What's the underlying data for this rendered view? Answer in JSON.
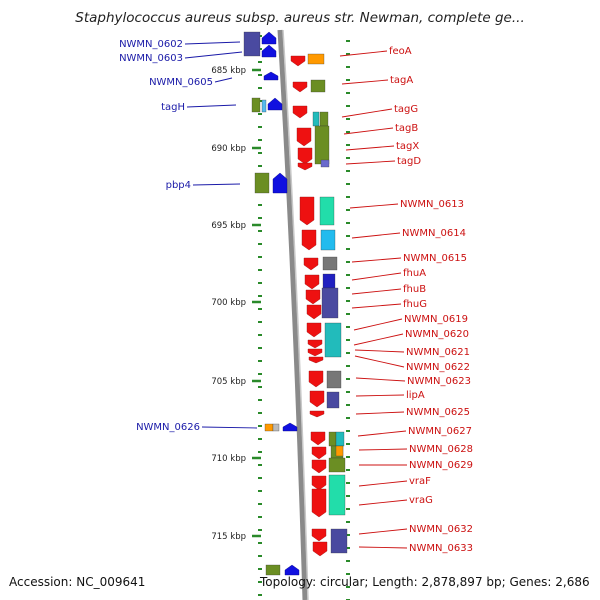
{
  "header": {
    "title": "Staphylococcus aureus subsp. aureus str. Newman, complete ge..."
  },
  "footer": {
    "accession": "Accession: NC_009641",
    "topology": "Topology: circular; Length: 2,878,897 bp; Genes: 2,686"
  },
  "colors": {
    "left_strand": "#1010e0",
    "right_strand": "#ee1111",
    "left_label": "#1a1aa8",
    "right_label": "#cc1111",
    "backbone": "#8a8a8a",
    "tick": "#2a8a2a"
  },
  "ruler": [
    {
      "label": "685 kbp"
    },
    {
      "label": "690 kbp"
    },
    {
      "label": "695 kbp"
    },
    {
      "label": "700 kbp"
    },
    {
      "label": "705 kbp"
    },
    {
      "label": "710 kbp"
    },
    {
      "label": "715 kbp"
    }
  ],
  "left_genes": [
    {
      "name": "NWMN_0602"
    },
    {
      "name": "NWMN_0603"
    },
    {
      "name": "NWMN_0605"
    },
    {
      "name": "tagH"
    },
    {
      "name": "pbp4"
    },
    {
      "name": "NWMN_0626"
    }
  ],
  "right_genes": [
    {
      "name": "feoA"
    },
    {
      "name": "tagA"
    },
    {
      "name": "tagG"
    },
    {
      "name": "tagB"
    },
    {
      "name": "tagX"
    },
    {
      "name": "tagD"
    },
    {
      "name": "NWMN_0613"
    },
    {
      "name": "NWMN_0614"
    },
    {
      "name": "NWMN_0615"
    },
    {
      "name": "fhuA"
    },
    {
      "name": "fhuB"
    },
    {
      "name": "fhuG"
    },
    {
      "name": "NWMN_0619"
    },
    {
      "name": "NWMN_0620"
    },
    {
      "name": "NWMN_0621"
    },
    {
      "name": "NWMN_0622"
    },
    {
      "name": "NWMN_0623"
    },
    {
      "name": "lipA"
    },
    {
      "name": "NWMN_0625"
    },
    {
      "name": "NWMN_0627"
    },
    {
      "name": "NWMN_0628"
    },
    {
      "name": "NWMN_0629"
    },
    {
      "name": "vraF"
    },
    {
      "name": "vraG"
    },
    {
      "name": "NWMN_0632"
    },
    {
      "name": "NWMN_0633"
    }
  ]
}
